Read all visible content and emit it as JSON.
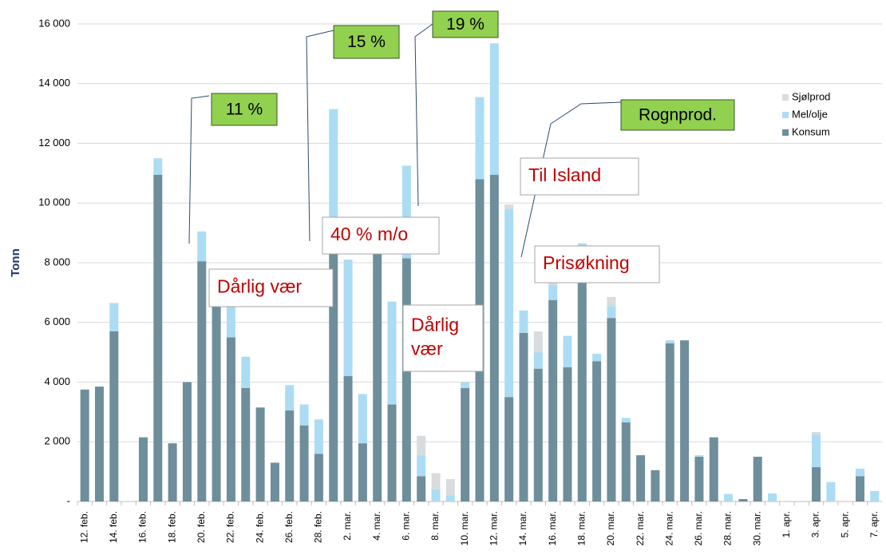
{
  "chart_data": {
    "type": "bar",
    "stacked": true,
    "y_label": "Tonn",
    "categories": [
      "12. feb.",
      null,
      "14. feb.",
      null,
      "16. feb.",
      null,
      "18. feb.",
      null,
      "20. feb.",
      null,
      "22. feb.",
      null,
      "24. feb.",
      null,
      "26. feb.",
      null,
      "28. feb.",
      null,
      "2. mar.",
      null,
      "4. mar.",
      null,
      "6. mar.",
      null,
      "8. mar.",
      null,
      "10. mar.",
      null,
      "12. mar.",
      null,
      "14. mar.",
      null,
      "16. mar.",
      null,
      "18. mar.",
      null,
      "20. mar.",
      null,
      "22. mar.",
      null,
      "24. mar.",
      null,
      "26. mar.",
      null,
      "28. mar.",
      null,
      "30. mar.",
      null,
      "1. apr.",
      null,
      "3. apr.",
      null,
      "5. apr.",
      null,
      "7. apr."
    ],
    "series": [
      {
        "name": "Konsum",
        "color": "#6e8e9b",
        "values": [
          3750,
          3850,
          5700,
          0,
          2150,
          10950,
          1950,
          4000,
          8050,
          7300,
          5500,
          3800,
          3150,
          1300,
          3050,
          2550,
          1600,
          9200,
          4200,
          1950,
          8500,
          3250,
          8150,
          850,
          0,
          0,
          3800,
          10800,
          10950,
          3500,
          5650,
          4450,
          6750,
          4500,
          7550,
          4700,
          6150,
          2650,
          1550,
          1050,
          5300,
          5400,
          1500,
          2150,
          0,
          80,
          1500,
          0,
          0,
          0,
          1150,
          0,
          0,
          850,
          0
        ]
      },
      {
        "name": "Mel/olje",
        "color": "#abdcf4",
        "values": [
          0,
          0,
          950,
          0,
          0,
          550,
          0,
          0,
          1000,
          250,
          1300,
          1050,
          0,
          0,
          850,
          700,
          1150,
          3950,
          3900,
          1650,
          800,
          3450,
          3100,
          700,
          400,
          200,
          200,
          2750,
          4400,
          6300,
          750,
          550,
          500,
          1050,
          1100,
          250,
          400,
          150,
          0,
          0,
          100,
          0,
          50,
          0,
          250,
          0,
          0,
          270,
          0,
          0,
          1100,
          650,
          0,
          250,
          350
        ]
      },
      {
        "name": "Sjølprod",
        "color": "#d8dcdf",
        "values": [
          0,
          0,
          0,
          0,
          0,
          0,
          0,
          0,
          0,
          0,
          0,
          0,
          0,
          0,
          0,
          0,
          0,
          0,
          0,
          0,
          100,
          0,
          0,
          650,
          550,
          550,
          0,
          0,
          0,
          150,
          0,
          700,
          650,
          0,
          0,
          0,
          300,
          0,
          0,
          0,
          0,
          0,
          0,
          0,
          0,
          0,
          0,
          0,
          0,
          0,
          80,
          0,
          0,
          0,
          0
        ]
      }
    ],
    "ylim": [
      0,
      16000
    ],
    "yticks": [
      {
        "value": 0,
        "label": "-"
      },
      {
        "value": 2000,
        "label": "2 000"
      },
      {
        "value": 4000,
        "label": "4 000"
      },
      {
        "value": 6000,
        "label": "6 000"
      },
      {
        "value": 8000,
        "label": "8 000"
      },
      {
        "value": 10000,
        "label": "10 000"
      },
      {
        "value": 12000,
        "label": "12 000"
      },
      {
        "value": 14000,
        "label": "14 000"
      },
      {
        "value": 16000,
        "label": "16 000"
      }
    ],
    "grid": true,
    "legend": "upper right",
    "annotations": {
      "green": [
        "11 %",
        "15 %",
        "19 %",
        "Rognprod."
      ],
      "notes": [
        [
          "Dårlig vær"
        ],
        [
          "40 % m/o"
        ],
        [
          "Dårlig",
          "vær"
        ],
        [
          "Til Island"
        ],
        [
          "Prisøkning"
        ]
      ]
    }
  }
}
